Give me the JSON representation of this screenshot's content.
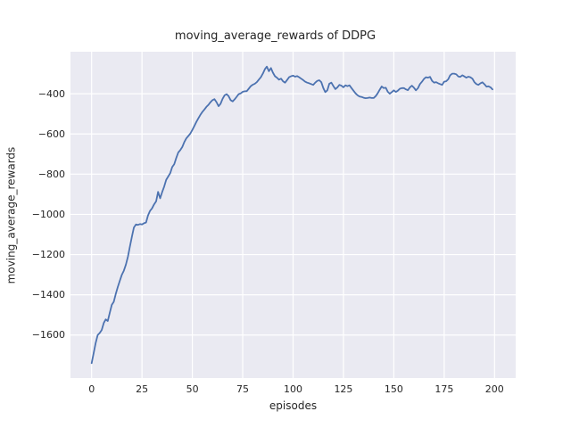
{
  "chart_data": {
    "type": "line",
    "title": "moving_average_rewards of DDPG",
    "xlabel": "episodes",
    "ylabel": "moving_average_rewards",
    "x_start": 0,
    "x_step": 1,
    "x_end": 199,
    "series": [
      {
        "name": "moving_average_rewards",
        "values": [
          -1740,
          -1690,
          -1640,
          -1600,
          -1590,
          -1575,
          -1540,
          -1522,
          -1530,
          -1490,
          -1450,
          -1435,
          -1395,
          -1360,
          -1330,
          -1300,
          -1280,
          -1250,
          -1210,
          -1160,
          -1110,
          -1065,
          -1050,
          -1052,
          -1048,
          -1050,
          -1044,
          -1040,
          -1005,
          -982,
          -970,
          -950,
          -935,
          -888,
          -920,
          -890,
          -862,
          -828,
          -812,
          -795,
          -765,
          -750,
          -720,
          -692,
          -680,
          -665,
          -640,
          -622,
          -610,
          -598,
          -580,
          -560,
          -540,
          -522,
          -505,
          -490,
          -478,
          -465,
          -455,
          -442,
          -432,
          -427,
          -442,
          -462,
          -450,
          -425,
          -408,
          -402,
          -412,
          -432,
          -438,
          -428,
          -415,
          -402,
          -398,
          -390,
          -388,
          -387,
          -375,
          -362,
          -355,
          -350,
          -342,
          -330,
          -318,
          -300,
          -278,
          -265,
          -288,
          -272,
          -295,
          -313,
          -320,
          -330,
          -325,
          -338,
          -345,
          -332,
          -318,
          -313,
          -310,
          -315,
          -312,
          -318,
          -325,
          -332,
          -340,
          -345,
          -348,
          -352,
          -356,
          -345,
          -336,
          -333,
          -342,
          -372,
          -392,
          -383,
          -350,
          -345,
          -362,
          -377,
          -368,
          -356,
          -360,
          -368,
          -358,
          -362,
          -358,
          -372,
          -385,
          -398,
          -408,
          -414,
          -416,
          -420,
          -422,
          -421,
          -419,
          -421,
          -421,
          -412,
          -398,
          -380,
          -364,
          -372,
          -370,
          -390,
          -400,
          -392,
          -383,
          -391,
          -385,
          -375,
          -372,
          -372,
          -378,
          -382,
          -368,
          -360,
          -370,
          -383,
          -372,
          -352,
          -340,
          -326,
          -318,
          -320,
          -316,
          -336,
          -345,
          -342,
          -348,
          -352,
          -356,
          -340,
          -338,
          -328,
          -308,
          -300,
          -300,
          -303,
          -314,
          -316,
          -308,
          -314,
          -320,
          -315,
          -318,
          -325,
          -342,
          -352,
          -356,
          -348,
          -343,
          -353,
          -365,
          -363,
          -368,
          -378
        ]
      }
    ],
    "xticks": [
      0,
      25,
      50,
      75,
      100,
      125,
      150,
      175,
      200
    ],
    "xtick_labels": [
      "0",
      "25",
      "50",
      "75",
      "100",
      "125",
      "150",
      "175",
      "200"
    ],
    "yticks": [
      -400,
      -600,
      -800,
      -1000,
      -1200,
      -1400,
      -1600
    ],
    "ytick_labels": [
      "−400",
      "−600",
      "−800",
      "−1000",
      "−1200",
      "−1400",
      "−1600"
    ],
    "xlim": [
      -10.5,
      210.5
    ],
    "ylim": [
      -1814,
      -191
    ],
    "grid": "on",
    "legend": "none",
    "colors": {
      "line": "#4C72B0",
      "axes_background": "#EAEAF2",
      "gridline": "#FFFFFF",
      "text": "#262626",
      "figure_background": "#FFFFFF"
    }
  }
}
